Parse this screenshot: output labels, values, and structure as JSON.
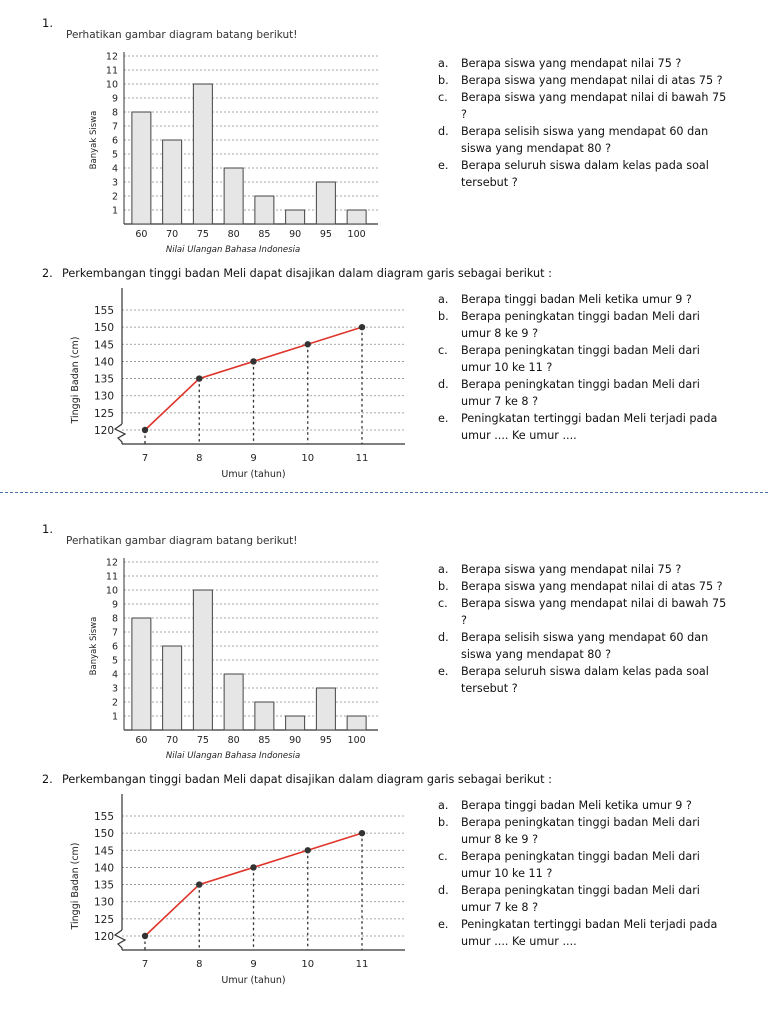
{
  "sections": [
    {
      "q1_number": "1.",
      "bar_title": "Perhatikan gambar diagram batang berikut!",
      "q1_questions": [
        {
          "letter": "a.",
          "text": "Berapa siswa yang mendapat nilai 75 ?"
        },
        {
          "letter": "b.",
          "text": "Berapa siswa yang mendapat nilai di atas 75 ?"
        },
        {
          "letter": "c.",
          "text": "Berapa siswa yang mendapat nilai di bawah 75 ?"
        },
        {
          "letter": "d.",
          "text": "Berapa selisih siswa yang mendapat 60 dan siswa yang mendapat 80 ?"
        },
        {
          "letter": "e.",
          "text": "Berapa seluruh siswa dalam kelas pada soal tersebut ?"
        }
      ],
      "q2_number": "2.",
      "q2_intro": "Perkembangan tinggi badan Meli dapat disajikan dalam diagram garis sebagai berikut :",
      "q2_questions": [
        {
          "letter": "a.",
          "text": "Berapa tinggi badan Meli ketika umur 9 ?"
        },
        {
          "letter": "b.",
          "text": "Berapa peningkatan tinggi badan Meli dari umur 8 ke 9 ?"
        },
        {
          "letter": "c.",
          "text": "Berapa peningkatan tinggi badan Meli dari umur 10 ke 11 ?"
        },
        {
          "letter": "d.",
          "text": "Berapa peningkatan tinggi badan Meli dari umur 7 ke 8 ?"
        },
        {
          "letter": "e.",
          "text": "Peningkatan tertinggi badan Meli terjadi pada umur .... Ke umur ...."
        }
      ]
    },
    {
      "q1_number": "1.",
      "bar_title": "Perhatikan gambar diagram batang berikut!",
      "q1_questions": [
        {
          "letter": "a.",
          "text": "Berapa siswa yang mendapat nilai 75 ?"
        },
        {
          "letter": "b.",
          "text": "Berapa siswa yang mendapat nilai di atas 75 ?"
        },
        {
          "letter": "c.",
          "text": "Berapa siswa yang mendapat nilai di bawah 75 ?"
        },
        {
          "letter": "d.",
          "text": "Berapa selisih siswa yang mendapat 60 dan siswa yang mendapat 80 ?"
        },
        {
          "letter": "e.",
          "text": "Berapa seluruh siswa dalam kelas pada soal tersebut ?"
        }
      ],
      "q2_number": "2.",
      "q2_intro": "Perkembangan tinggi badan Meli dapat disajikan dalam diagram garis sebagai berikut :",
      "q2_questions": [
        {
          "letter": "a.",
          "text": "Berapa tinggi badan Meli ketika umur 9 ?"
        },
        {
          "letter": "b.",
          "text": "Berapa peningkatan tinggi badan Meli dari umur 8 ke 9 ?"
        },
        {
          "letter": "c.",
          "text": "Berapa peningkatan tinggi badan Meli dari umur 10 ke 11 ?"
        },
        {
          "letter": "d.",
          "text": "Berapa peningkatan tinggi badan Meli dari umur 7 ke 8 ?"
        },
        {
          "letter": "e.",
          "text": "Peningkatan tertinggi badan Meli terjadi pada umur .... Ke umur ...."
        }
      ]
    }
  ],
  "chart_data": [
    {
      "type": "bar",
      "categories": [
        "60",
        "70",
        "75",
        "80",
        "85",
        "90",
        "95",
        "100"
      ],
      "values": [
        8,
        6,
        10,
        4,
        2,
        1,
        3,
        1
      ],
      "xlabel": "Nilai Ulangan Bahasa Indonesia",
      "ylabel": "Banyak Siswa",
      "ylim": [
        0,
        12
      ],
      "yticks": [
        1,
        2,
        3,
        4,
        5,
        6,
        7,
        8,
        9,
        10,
        11,
        12
      ],
      "grid": true,
      "bar_color": "#e6e6e6"
    },
    {
      "type": "line",
      "x": [
        7,
        8,
        9,
        10,
        11
      ],
      "y": [
        120,
        135,
        140,
        145,
        150
      ],
      "xlabel": "Umur (tahun)",
      "ylabel": "Tinggi Badan (cm)",
      "ylim": [
        120,
        155
      ],
      "yticks": [
        120,
        125,
        130,
        135,
        140,
        145,
        150,
        155
      ],
      "grid": true,
      "axis_break": true,
      "line_color": "#e0352b",
      "point_color": "#333333"
    }
  ]
}
